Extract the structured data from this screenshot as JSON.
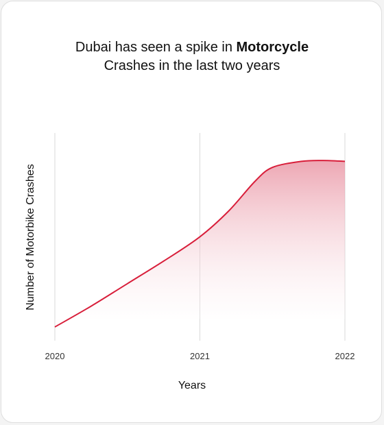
{
  "chart_data": {
    "type": "area",
    "title_part1": "Dubai has seen a spike in ",
    "title_bold": "Motorcycle",
    "title_part2": "Crashes in the last two years",
    "xlabel": "Years",
    "ylabel": "Number of Motorbike Crashes",
    "x_ticks": [
      "2020",
      "2021",
      "2022"
    ],
    "x": [
      2020,
      2020.25,
      2020.5,
      2020.75,
      2021,
      2021.2,
      2021.38,
      2021.5,
      2021.7,
      2021.85,
      2022
    ],
    "values": [
      0,
      0.12,
      0.25,
      0.38,
      0.52,
      0.67,
      0.84,
      0.92,
      0.955,
      0.96,
      0.955
    ],
    "xlim": [
      2020,
      2022
    ],
    "ylim": [
      0,
      1
    ],
    "grid": "vertical",
    "colors": {
      "line": "#d81e3a",
      "fill": "#e7899a"
    }
  }
}
